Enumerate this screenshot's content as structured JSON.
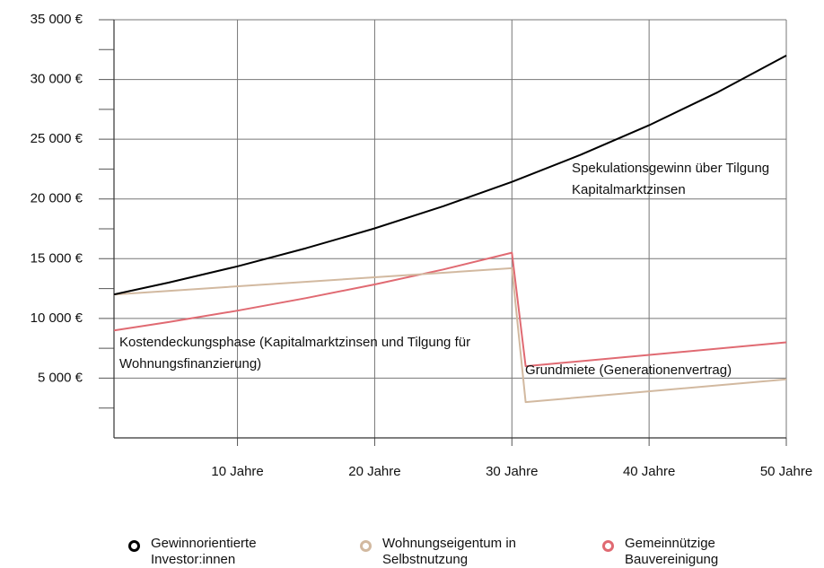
{
  "chart_data": {
    "type": "line",
    "xlim": [
      1,
      50
    ],
    "xticks": [
      {
        "value": 10,
        "label": "10 Jahre"
      },
      {
        "value": 20,
        "label": "20 Jahre"
      },
      {
        "value": 30,
        "label": "30 Jahre"
      },
      {
        "value": 40,
        "label": "40 Jahre"
      },
      {
        "value": 50,
        "label": "50 Jahre"
      }
    ],
    "ylim": [
      0,
      35000
    ],
    "yticks": [
      {
        "value": 5000,
        "label": "5 000 €"
      },
      {
        "value": 10000,
        "label": "10 000 €"
      },
      {
        "value": 15000,
        "label": "15 000 €"
      },
      {
        "value": 20000,
        "label": "20 000 €"
      },
      {
        "value": 25000,
        "label": "25 000 €"
      },
      {
        "value": 30000,
        "label": "30 000 €"
      },
      {
        "value": 35000,
        "label": "35 000 €"
      }
    ],
    "yminorticks": [
      2500,
      7500,
      12500,
      17500,
      22500,
      27500,
      32500
    ],
    "grid": true,
    "series": [
      {
        "name": "Gewinnorientierte Investor:innen",
        "color": "#000000",
        "x": [
          1,
          5,
          10,
          15,
          20,
          25,
          30,
          35,
          40,
          45,
          50
        ],
        "values": [
          12000,
          13000,
          14360,
          15880,
          17540,
          19390,
          21430,
          23690,
          26170,
          28930,
          32000
        ]
      },
      {
        "name": "Wohnungseigentum in Selbstnutzung",
        "color": "#d2b9a0",
        "x": [
          1,
          30,
          31,
          50
        ],
        "values": [
          12000,
          14200,
          3000,
          4900
        ]
      },
      {
        "name": "Gemeinnützige Bauvereinigung",
        "color": "#e06a72",
        "x": [
          1,
          5,
          10,
          15,
          20,
          25,
          30,
          31,
          50
        ],
        "values": [
          9000,
          9700,
          10650,
          11700,
          12840,
          14100,
          15500,
          6000,
          8000
        ]
      }
    ],
    "annotations": [
      "Spekulationsgewinn über Tilgung Kapitalmarktzinsen",
      "Kostendeckungsphase (Kapitalmarktzinsen und Tilgung für Wohnungsfinanzierung)",
      "Grundmiete (Generationenvertrag)"
    ]
  }
}
